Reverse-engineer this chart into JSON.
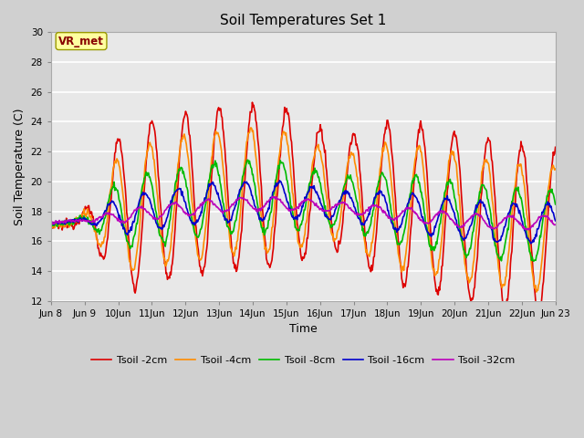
{
  "title": "Soil Temperatures Set 1",
  "xlabel": "Time",
  "ylabel": "Soil Temperature (C)",
  "ylim": [
    12,
    30
  ],
  "yticks": [
    12,
    14,
    16,
    18,
    20,
    22,
    24,
    26,
    28,
    30
  ],
  "fig_bg": "#d0d0d0",
  "plot_bg": "#e8e8e8",
  "series": [
    {
      "label": "Tsoil -2cm",
      "color": "#dd0000",
      "lw": 1.2
    },
    {
      "label": "Tsoil -4cm",
      "color": "#ff8c00",
      "lw": 1.2
    },
    {
      "label": "Tsoil -8cm",
      "color": "#00bb00",
      "lw": 1.2
    },
    {
      "label": "Tsoil -16cm",
      "color": "#0000cc",
      "lw": 1.2
    },
    {
      "label": "Tsoil -32cm",
      "color": "#bb00bb",
      "lw": 1.2
    }
  ],
  "annotation_text": "VR_met",
  "annotation_color": "#880000",
  "annotation_bg": "#ffffa0",
  "annotation_edge": "#999900",
  "x_tick_labels": [
    "Jun 8",
    "Jun 9",
    "10Jun",
    "11Jun",
    "12Jun",
    "13Jun",
    "14Jun",
    "15Jun",
    "16Jun",
    "17Jun",
    "18Jun",
    "19Jun",
    "20Jun",
    "21Jun",
    "22Jun",
    "Jun 23"
  ],
  "n_points": 720
}
